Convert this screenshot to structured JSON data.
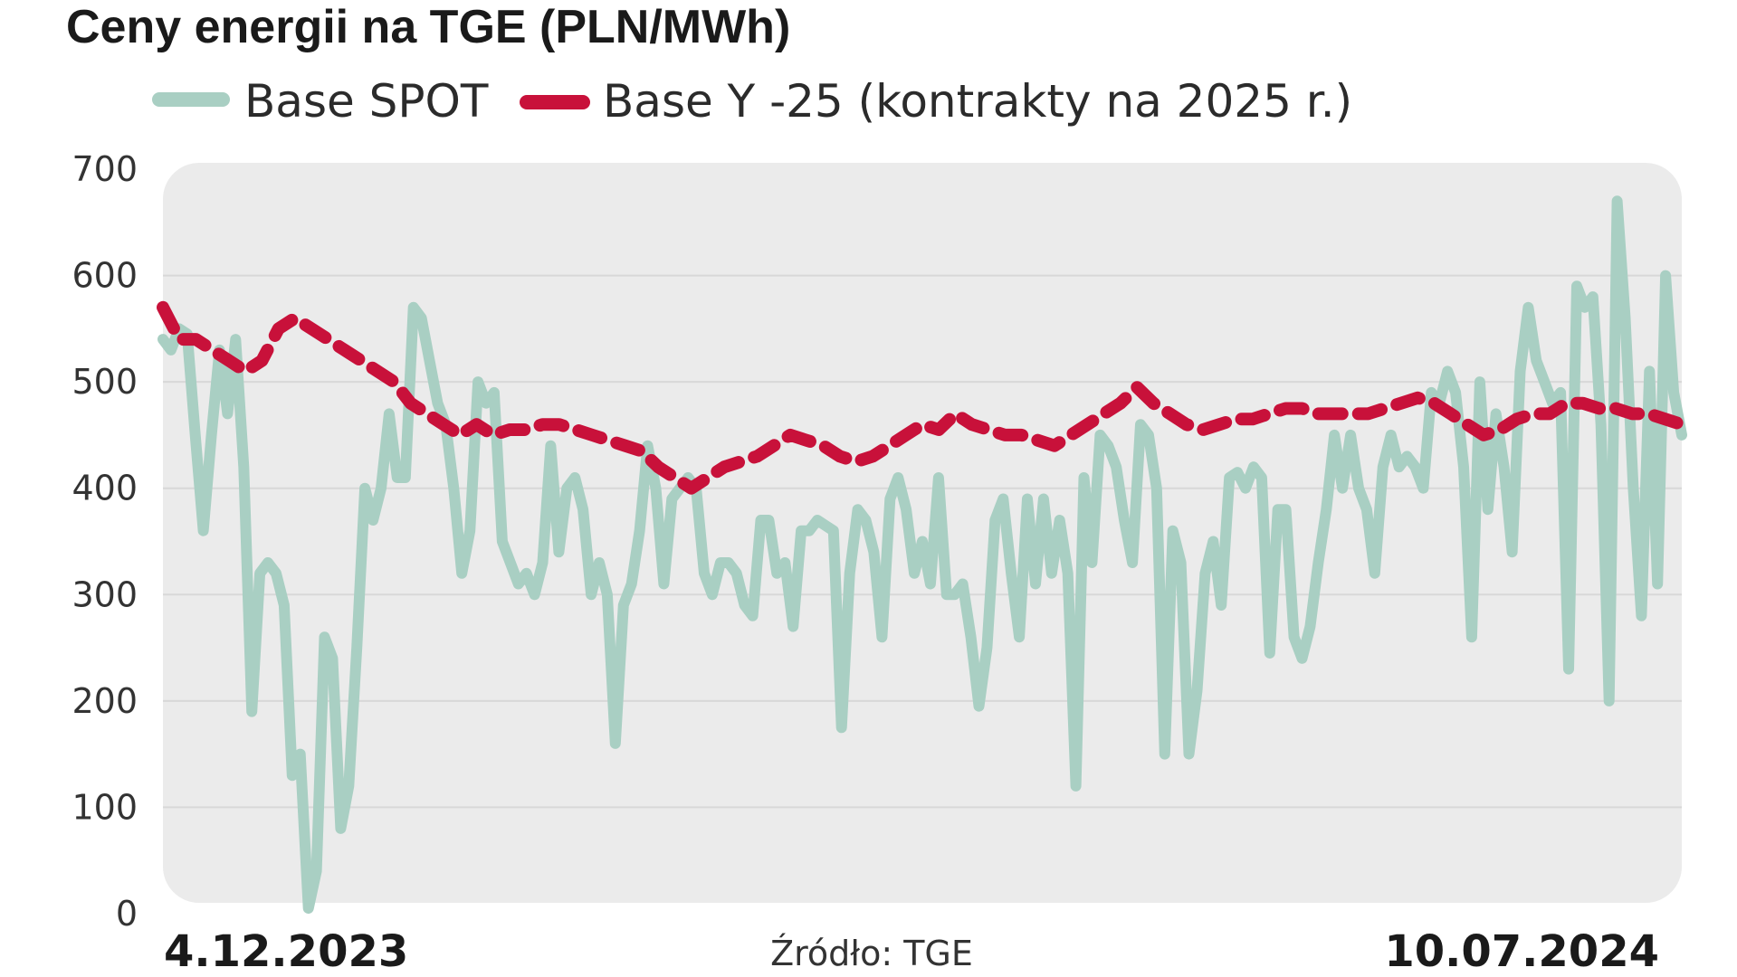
{
  "chart_data": {
    "type": "line",
    "title": "Ceny energii na TGE (PLN/MWh)",
    "ylim": [
      0,
      700
    ],
    "yticks": [
      "0",
      "100",
      "200",
      "300",
      "400",
      "500",
      "600",
      "700"
    ],
    "grid": true,
    "legend_placement": "top-left",
    "x_start_label": "4.12.2023",
    "x_end_label": "10.07.2024",
    "source": "Źródło: TGE",
    "series": [
      {
        "name": "Base SPOT",
        "color": "#a9cfc3",
        "style": "solid",
        "values": [
          540,
          530,
          550,
          545,
          450,
          360,
          450,
          530,
          470,
          540,
          420,
          190,
          320,
          330,
          320,
          290,
          130,
          150,
          5,
          40,
          260,
          240,
          80,
          120,
          250,
          400,
          370,
          400,
          470,
          410,
          410,
          570,
          560,
          520,
          480,
          460,
          400,
          320,
          360,
          500,
          480,
          490,
          350,
          330,
          310,
          320,
          300,
          330,
          440,
          340,
          400,
          410,
          380,
          300,
          330,
          300,
          160,
          290,
          310,
          360,
          440,
          400,
          310,
          390,
          400,
          410,
          400,
          320,
          300,
          330,
          330,
          320,
          290,
          280,
          370,
          370,
          320,
          330,
          270,
          360,
          360,
          370,
          365,
          360,
          175,
          320,
          380,
          370,
          340,
          260,
          390,
          410,
          380,
          320,
          350,
          310,
          410,
          300,
          300,
          310,
          260,
          195,
          250,
          370,
          390,
          320,
          260,
          390,
          310,
          390,
          320,
          370,
          320,
          120,
          410,
          330,
          450,
          440,
          420,
          370,
          330,
          460,
          450,
          400,
          150,
          360,
          330,
          150,
          210,
          320,
          350,
          290,
          410,
          415,
          400,
          420,
          410,
          245,
          380,
          380,
          260,
          240,
          270,
          330,
          380,
          450,
          400,
          450,
          400,
          380,
          320,
          420,
          450,
          420,
          430,
          420,
          400,
          490,
          480,
          510,
          490,
          420,
          260,
          500,
          380,
          470,
          420,
          340,
          510,
          570,
          520,
          500,
          480,
          490,
          230,
          590,
          570,
          580,
          460,
          200,
          670,
          560,
          400,
          280,
          510,
          310,
          600,
          490,
          450
        ]
      },
      {
        "name": "Base Y -25 (kontrakty na 2025 r.)",
        "color": "#c8113a",
        "style": "dashed",
        "values": [
          570,
          540,
          540,
          530,
          520,
          510,
          520,
          550,
          560,
          550,
          540,
          530,
          520,
          510,
          500,
          480,
          470,
          460,
          450,
          460,
          450,
          455,
          455,
          460,
          460,
          455,
          450,
          445,
          440,
          435,
          420,
          410,
          400,
          410,
          420,
          425,
          430,
          440,
          450,
          445,
          440,
          430,
          425,
          430,
          440,
          450,
          460,
          455,
          470,
          460,
          455,
          450,
          450,
          445,
          440,
          450,
          460,
          470,
          480,
          495,
          480,
          470,
          460,
          455,
          460,
          465,
          465,
          470,
          475,
          475,
          470,
          470,
          470,
          470,
          475,
          480,
          485,
          480,
          470,
          460,
          450,
          455,
          465,
          470,
          470,
          480,
          480,
          475,
          475,
          470,
          470,
          465,
          460
        ]
      }
    ]
  }
}
